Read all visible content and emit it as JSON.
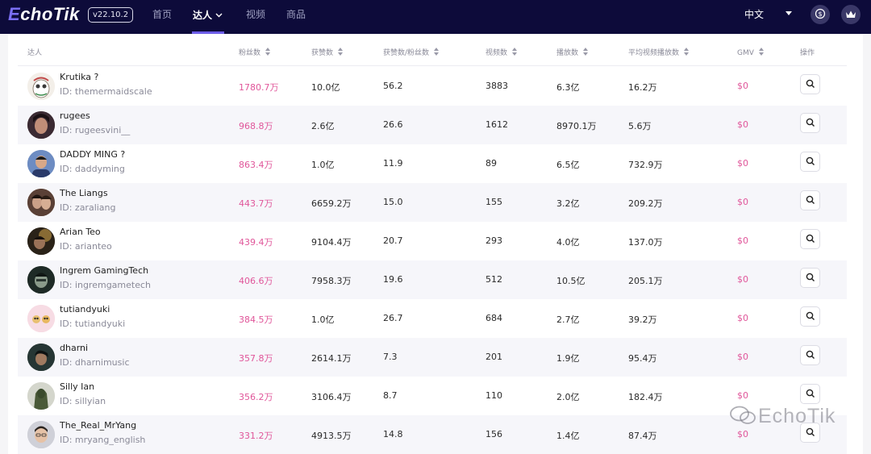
{
  "app": {
    "logo_text": "EchoTik",
    "version": "v22.10.2"
  },
  "nav": {
    "items": [
      "首页",
      "达人",
      "视频",
      "商品"
    ],
    "active": "达人",
    "language": "中文"
  },
  "colors": {
    "topbar": "#0d0b3a",
    "accent": "#6c5ce7",
    "follower_pink": "#e0569a"
  },
  "table": {
    "columns": [
      "达人",
      "粉丝数",
      "获赞数",
      "获赞数/粉丝数",
      "视频数",
      "播放数",
      "平均视频播放数",
      "GMV",
      "操作"
    ],
    "rows": [
      {
        "name": "Krutika ?",
        "id": "ID: themermaidscale",
        "followers": "1780.7万",
        "likes": "10.0亿",
        "ratio": "56.2",
        "videos": "3883",
        "plays": "6.3亿",
        "avg_plays": "16.2万",
        "gmv": "$0"
      },
      {
        "name": "rugees",
        "id": "ID: rugeesvini__",
        "followers": "968.8万",
        "likes": "2.6亿",
        "ratio": "26.6",
        "videos": "1612",
        "plays": "8970.1万",
        "avg_plays": "5.6万",
        "gmv": "$0"
      },
      {
        "name": "DADDY MING ?",
        "id": "ID: daddyming",
        "followers": "863.4万",
        "likes": "1.0亿",
        "ratio": "11.9",
        "videos": "89",
        "plays": "6.5亿",
        "avg_plays": "732.9万",
        "gmv": "$0"
      },
      {
        "name": "The Liangs",
        "id": "ID: zaraliang",
        "followers": "443.7万",
        "likes": "6659.2万",
        "ratio": "15.0",
        "videos": "155",
        "plays": "3.2亿",
        "avg_plays": "209.2万",
        "gmv": "$0"
      },
      {
        "name": "Arian Teo",
        "id": "ID: arianteo",
        "followers": "439.4万",
        "likes": "9104.4万",
        "ratio": "20.7",
        "videos": "293",
        "plays": "4.0亿",
        "avg_plays": "137.0万",
        "gmv": "$0"
      },
      {
        "name": "Ingrem GamingTech",
        "id": "ID: ingremgametech",
        "followers": "406.6万",
        "likes": "7958.3万",
        "ratio": "19.6",
        "videos": "512",
        "plays": "10.5亿",
        "avg_plays": "205.1万",
        "gmv": "$0"
      },
      {
        "name": "tutiandyuki",
        "id": "ID: tutiandyuki",
        "followers": "384.5万",
        "likes": "1.0亿",
        "ratio": "26.7",
        "videos": "684",
        "plays": "2.7亿",
        "avg_plays": "39.2万",
        "gmv": "$0"
      },
      {
        "name": "dharni",
        "id": "ID: dharnimusic",
        "followers": "357.8万",
        "likes": "2614.1万",
        "ratio": "7.3",
        "videos": "201",
        "plays": "1.9亿",
        "avg_plays": "95.4万",
        "gmv": "$0"
      },
      {
        "name": "Silly Ian",
        "id": "ID: sillyian",
        "followers": "356.2万",
        "likes": "3106.4万",
        "ratio": "8.7",
        "videos": "110",
        "plays": "2.0亿",
        "avg_plays": "182.4万",
        "gmv": "$0"
      },
      {
        "name": "The_Real_MrYang",
        "id": "ID: mryang_english",
        "followers": "331.2万",
        "likes": "4913.5万",
        "ratio": "14.8",
        "videos": "156",
        "plays": "1.4亿",
        "avg_plays": "87.4万",
        "gmv": "$0"
      }
    ]
  },
  "watermark": "EchoTik"
}
